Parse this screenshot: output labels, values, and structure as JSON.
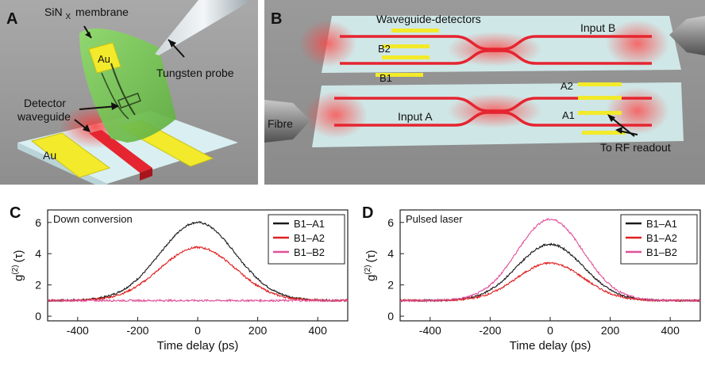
{
  "panels": {
    "a": {
      "letter": "A",
      "membrane_label": "SiN",
      "membrane_sub": "X",
      "membrane_suffix": "membrane",
      "au_top": "Au",
      "au_bottom": "Au",
      "probe_label": "Tungsten probe",
      "detector_line1": "Detector",
      "detector_line2": "waveguide"
    },
    "b": {
      "letter": "B",
      "waveguide_detectors": "Waveguide-detectors",
      "input_b": "Input B",
      "input_a": "Input A",
      "fibre": "Fibre",
      "b2": "B2",
      "b1": "B1",
      "a2": "A2",
      "a1": "A1",
      "rf_readout": "To RF readout"
    },
    "c": {
      "letter": "C"
    },
    "d": {
      "letter": "D"
    }
  },
  "colors": {
    "series_a1": "#1a1a1a",
    "series_a2": "#e02020",
    "series_b2": "#e0509a",
    "waveguide": "#e52530",
    "gold": "#f2ea2a",
    "membrane": "#7ccf5a"
  },
  "chart_data": [
    {
      "type": "line",
      "panel": "C",
      "annotation": "Down conversion",
      "xlabel": "Time delay (ps)",
      "ylabel": "g(2) (τ)",
      "ylabel_main": "g",
      "ylabel_sup": "(2)",
      "ylabel_arg": "(τ)",
      "xlim": [
        -500,
        500
      ],
      "ylim": [
        -0.3,
        6.8
      ],
      "xticks": [
        -400,
        -200,
        0,
        200,
        400
      ],
      "yticks": [
        0,
        2,
        4,
        6
      ],
      "legend_position": "top-right",
      "baseline": 1.0,
      "width_ps": 125,
      "series": [
        {
          "name": "B1–A1",
          "peak": 6.0,
          "color": "#1a1a1a"
        },
        {
          "name": "B1–A2",
          "peak": 4.4,
          "color": "#e02020"
        },
        {
          "name": "B1–B2",
          "peak": 1.0,
          "color": "#e0509a"
        }
      ]
    },
    {
      "type": "line",
      "panel": "D",
      "annotation": "Pulsed laser",
      "xlabel": "Time delay (ps)",
      "ylabel": "g(2) (τ)",
      "ylabel_main": "g",
      "ylabel_sup": "(2)",
      "ylabel_arg": "(τ)",
      "xlim": [
        -500,
        500
      ],
      "ylim": [
        -0.3,
        6.8
      ],
      "xticks": [
        -400,
        -200,
        0,
        200,
        400
      ],
      "yticks": [
        0,
        2,
        4,
        6
      ],
      "legend_position": "top-right",
      "baseline": 1.0,
      "width_ps": 110,
      "series": [
        {
          "name": "B1–A1",
          "peak": 4.6,
          "color": "#1a1a1a"
        },
        {
          "name": "B1–A2",
          "peak": 3.4,
          "color": "#e02020"
        },
        {
          "name": "B1–B2",
          "peak": 6.2,
          "color": "#e0509a"
        }
      ]
    }
  ]
}
